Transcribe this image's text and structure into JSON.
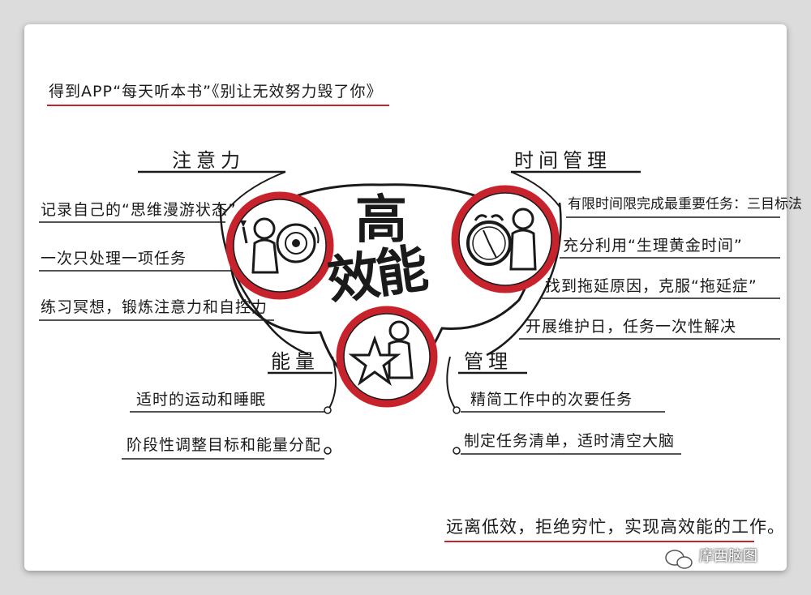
{
  "title": "得到APP“每天听本书”《别让无效努力毁了你》",
  "center": {
    "line1": "高",
    "line2": "效能"
  },
  "branches": {
    "attention": {
      "label": "注意力",
      "items": [
        "记录自己的“思维漫游状态”",
        "一次只处理一项任务",
        "练习冥想，锻炼注意力和自控力"
      ]
    },
    "time": {
      "label": "时间管理",
      "items": [
        "有限时间限完成最重要任务：三目标法",
        "充分利用“生理黄金时间”",
        "找到拖延原因，克服“拖延症”",
        "开展维护日，任务一次性解决"
      ]
    },
    "energy": {
      "label": "能量",
      "items": [
        "适时的运动和睡眠",
        "阶段性调整目标和能量分配"
      ]
    },
    "management": {
      "label": "管理",
      "items": [
        "精简工作中的次要任务",
        "制定任务清单，适时清空大脑"
      ]
    }
  },
  "footer": "远离低效，拒绝穷忙，实现高效能的工作。",
  "watermark": "摩西脑图",
  "colors": {
    "accent": "#c8232c",
    "ink": "#1a1a1a",
    "underline": "#c8232c"
  },
  "icons": [
    "painter-figure-icon",
    "alarm-clock-figure-icon",
    "star-figure-icon",
    "wechat-icon"
  ]
}
